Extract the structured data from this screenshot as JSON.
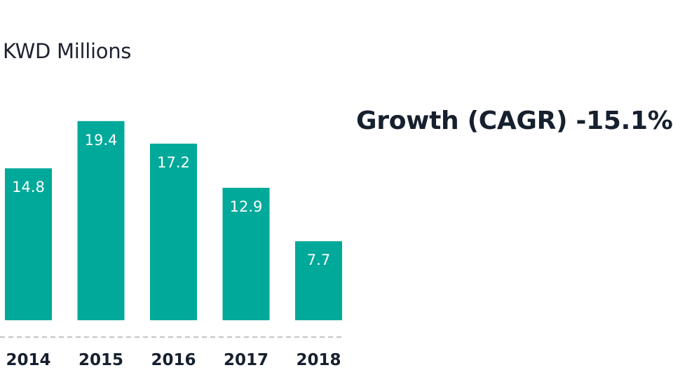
{
  "header": {
    "unit_label": "KWD Millions",
    "growth_label": "Growth (CAGR) -15.1%"
  },
  "chart_data": {
    "type": "bar",
    "categories": [
      "2014",
      "2015",
      "2016",
      "2017",
      "2018"
    ],
    "values": [
      14.8,
      19.4,
      17.2,
      12.9,
      7.7
    ],
    "data_labels": [
      "14.8",
      "19.4",
      "17.2",
      "12.9",
      "7.7"
    ],
    "title": "",
    "xlabel": "",
    "ylabel": "KWD Millions",
    "ylim": [
      0,
      20
    ],
    "grid": false,
    "legend": "none",
    "bar_color": "#00a999",
    "baseline_color": "#b0b0b0"
  }
}
